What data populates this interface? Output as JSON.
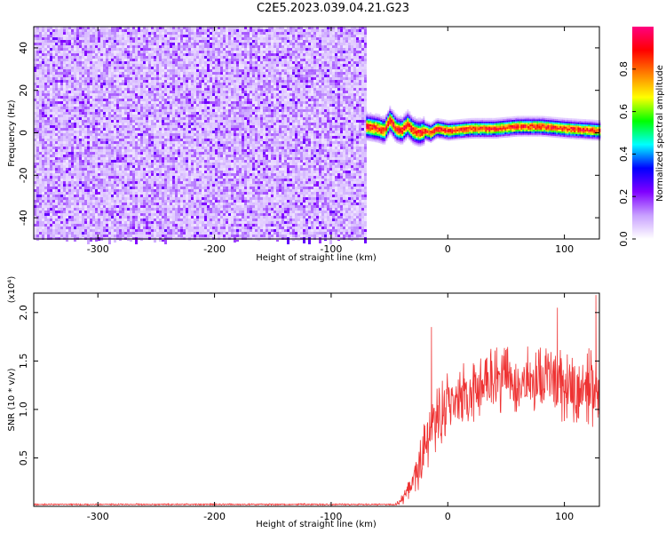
{
  "title": "C2E5.2023.039.04.21.G23",
  "chart_data": [
    {
      "type": "heatmap",
      "xlabel": "Height of straight line (km)",
      "ylabel": "Frequency (Hz)",
      "xlim": [
        -355,
        130
      ],
      "ylim": [
        -50,
        50
      ],
      "x_ticks": [
        -300,
        -200,
        -100,
        0,
        100
      ],
      "y_ticks": [
        -40,
        -20,
        0,
        20,
        40
      ],
      "colorbar": {
        "label": "Normalized spectral amplitude",
        "range": [
          0,
          1
        ],
        "ticks": [
          0.0,
          0.2,
          0.4,
          0.6,
          0.8
        ],
        "tick_labels": [
          "0.0",
          "0.2",
          "0.4",
          "0.6",
          "0.8"
        ],
        "colors": [
          "#ffffff",
          "#c8a0ff",
          "#8000ff",
          "#0000ff",
          "#00ffff",
          "#00ff00",
          "#ffff00",
          "#ff8000",
          "#ff0000",
          "#ff0080"
        ]
      },
      "noise_region": {
        "x": [
          -355,
          -70
        ],
        "amplitude_range": [
          0.05,
          0.25
        ]
      },
      "signal_track": {
        "x": [
          -70,
          -60,
          -55,
          -50,
          -45,
          -40,
          -35,
          -30,
          -25,
          -20,
          -15,
          -10,
          0,
          20,
          40,
          60,
          80,
          100,
          130
        ],
        "freq": [
          3,
          2,
          1,
          6,
          2,
          1,
          4,
          1,
          0,
          1,
          0,
          2,
          1,
          2,
          2,
          3,
          3,
          2,
          1
        ],
        "peak_amplitude": 0.9
      }
    },
    {
      "type": "line",
      "xlabel": "Height of straight line (km)",
      "ylabel": "SNR (10 * v/v)",
      "y_multiplier_label": "(x10⁴)",
      "xlim": [
        -355,
        130
      ],
      "ylim": [
        0,
        22000
      ],
      "x_ticks": [
        -300,
        -200,
        -100,
        0,
        100
      ],
      "y_ticks": [
        5000,
        10000,
        15000,
        20000
      ],
      "y_tick_labels": [
        "0.5",
        "1.0",
        "1.5",
        "2.0"
      ],
      "color": "#ee3333",
      "envelope": {
        "x": [
          -355,
          -45,
          -38,
          -30,
          -25,
          -20,
          -15,
          -10,
          -5,
          0,
          10,
          20,
          30,
          40,
          60,
          80,
          100,
          110,
          120,
          125,
          130
        ],
        "mean": [
          200,
          200,
          800,
          2500,
          4000,
          6000,
          7500,
          8500,
          9500,
          10500,
          11000,
          12000,
          12500,
          13000,
          13000,
          13000,
          12500,
          12500,
          12000,
          12000,
          12000
        ],
        "spread": [
          80,
          80,
          600,
          1500,
          2500,
          3000,
          3500,
          3500,
          3500,
          3500,
          3500,
          3500,
          3500,
          3500,
          3500,
          3500,
          4000,
          4000,
          4500,
          4500,
          4500
        ]
      },
      "spikes": [
        {
          "x": -14,
          "y": 18500
        },
        {
          "x": 94,
          "y": 20500
        },
        {
          "x": 127,
          "y": 21800
        }
      ]
    }
  ]
}
